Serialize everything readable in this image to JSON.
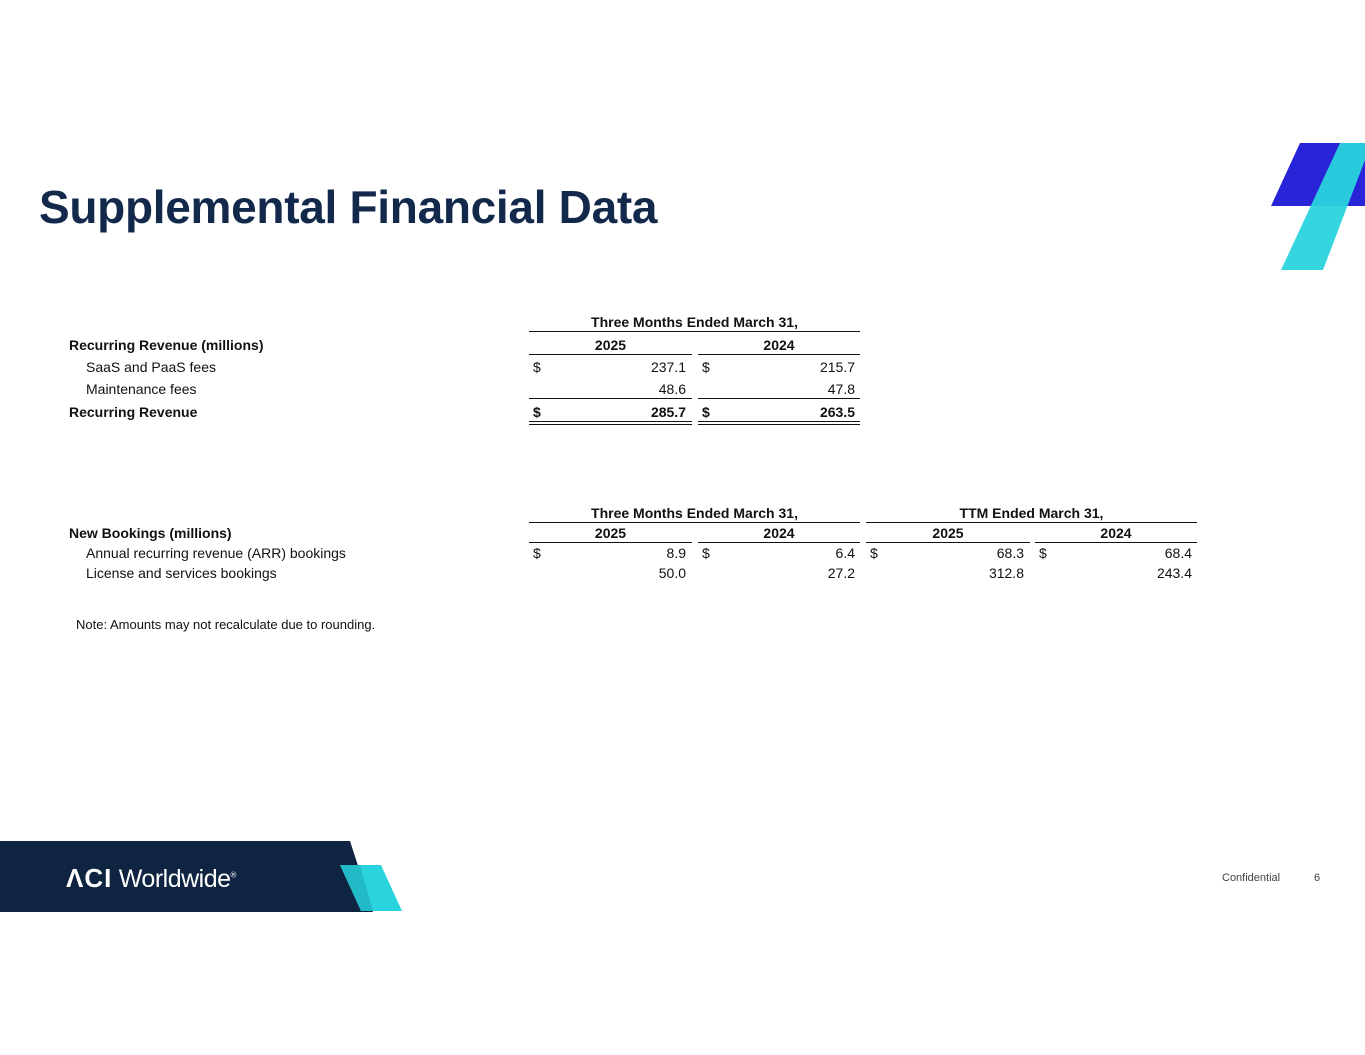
{
  "title": "Supplemental Financial Data",
  "recurring_revenue": {
    "period_header": "Three Months Ended March 31,",
    "section_label": "Recurring Revenue (millions)",
    "years": [
      "2025",
      "2024"
    ],
    "rows": [
      {
        "label": "SaaS and PaaS fees",
        "values": [
          "237.1",
          "215.7"
        ],
        "currency": true
      },
      {
        "label": "Maintenance fees",
        "values": [
          "48.6",
          "47.8"
        ],
        "currency": false
      }
    ],
    "total": {
      "label": "Recurring Revenue",
      "values": [
        "285.7",
        "263.5"
      ],
      "currency": true
    },
    "currency_symbol": "$"
  },
  "new_bookings": {
    "period_headers": [
      "Three Months Ended March 31,",
      "TTM Ended March 31,"
    ],
    "section_label": "New Bookings (millions)",
    "years": [
      "2025",
      "2024",
      "2025",
      "2024"
    ],
    "rows": [
      {
        "label": "Annual recurring revenue (ARR) bookings",
        "values": [
          "8.9",
          "6.4",
          "68.3",
          "68.4"
        ],
        "currency": true
      },
      {
        "label": "License and services bookings",
        "values": [
          "50.0",
          "27.2",
          "312.8",
          "243.4"
        ],
        "currency": false
      }
    ],
    "currency_symbol": "$"
  },
  "note": "Note: Amounts may not recalculate due to rounding.",
  "footer": {
    "logo_text": "ACI Worldwide",
    "confidential": "Confidential",
    "page_number": "6"
  },
  "colors": {
    "title": "#13294b",
    "navy": "#0f2440",
    "blue": "#2a24d8",
    "cyan": "#2ad4de"
  }
}
